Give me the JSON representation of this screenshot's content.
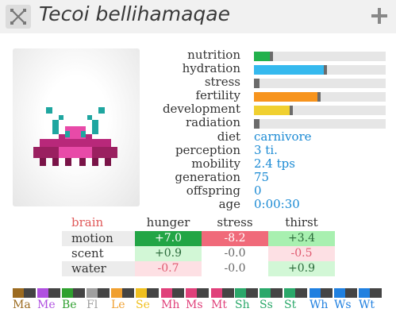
{
  "window": {
    "title": "Tecoi bellihamaqae"
  },
  "icons": {
    "close": "close-x-icon",
    "add": "plus-icon"
  },
  "stats": [
    {
      "label": "nutrition",
      "value": 0.12,
      "color": "#22b14c"
    },
    {
      "label": "hydration",
      "value": 0.53,
      "color": "#35b9ee"
    },
    {
      "label": "stress",
      "value": 0.02,
      "color": "#6b6b6b"
    },
    {
      "label": "fertility",
      "value": 0.48,
      "color": "#f7941d"
    },
    {
      "label": "development",
      "value": 0.27,
      "color": "#f0d030"
    },
    {
      "label": "radiation",
      "value": 0.02,
      "color": "#6b6b6b"
    }
  ],
  "info": [
    {
      "label": "diet",
      "value": "carnivore"
    },
    {
      "label": "perception",
      "value": "3 ti."
    },
    {
      "label": "mobility",
      "value": "2.4 tps"
    },
    {
      "label": "generation",
      "value": "75"
    },
    {
      "label": "offspring",
      "value": "0"
    },
    {
      "label": "age",
      "value": "0:00:30"
    }
  ],
  "brain": {
    "title": "brain",
    "columns": [
      "hunger",
      "stress",
      "thirst"
    ],
    "rows": [
      {
        "label": "motion",
        "cells": [
          {
            "text": "+7.0",
            "bg": "#22a545",
            "color": "#ffffff"
          },
          {
            "text": "-8.2",
            "bg": "#f06a7a",
            "color": "#ffffff"
          },
          {
            "text": "+3.4",
            "bg": "#a8f0b0",
            "color": "#2a6a3a"
          }
        ]
      },
      {
        "label": "scent",
        "cells": [
          {
            "text": "+0.9",
            "bg": "#d2f7d6",
            "color": "#2a6a3a"
          },
          {
            "text": "-0.0",
            "bg": "#ffffff",
            "color": "#666666"
          },
          {
            "text": "-0.5",
            "bg": "#fde0e4",
            "color": "#e05a70"
          }
        ]
      },
      {
        "label": "water",
        "cells": [
          {
            "text": "-0.7",
            "bg": "#fde0e4",
            "color": "#e05a70"
          },
          {
            "text": "-0.0",
            "bg": "#ffffff",
            "color": "#666666"
          },
          {
            "text": "+0.9",
            "bg": "#d2f7d6",
            "color": "#2a6a3a"
          }
        ]
      }
    ]
  },
  "scents": [
    {
      "label": "Ma",
      "color": "#9c6b20"
    },
    {
      "label": "Me",
      "color": "#b050e0"
    },
    {
      "label": "Be",
      "color": "#2fa02f"
    },
    {
      "label": "Fl",
      "color": "#a0a0a0"
    },
    {
      "label": "Le",
      "color": "#f0a030"
    },
    {
      "label": "Se",
      "color": "#f0c020"
    },
    {
      "label": "Mh",
      "color": "#e0407a"
    },
    {
      "label": "Ms",
      "color": "#e0407a"
    },
    {
      "label": "Mt",
      "color": "#e0407a"
    },
    {
      "label": "Sh",
      "color": "#2aa86a"
    },
    {
      "label": "Ss",
      "color": "#2aa86a"
    },
    {
      "label": "St",
      "color": "#2aa86a"
    },
    {
      "label": "Wh",
      "color": "#2080e0"
    },
    {
      "label": "Ws",
      "color": "#2080e0"
    },
    {
      "label": "Wt",
      "color": "#2080e0"
    }
  ]
}
